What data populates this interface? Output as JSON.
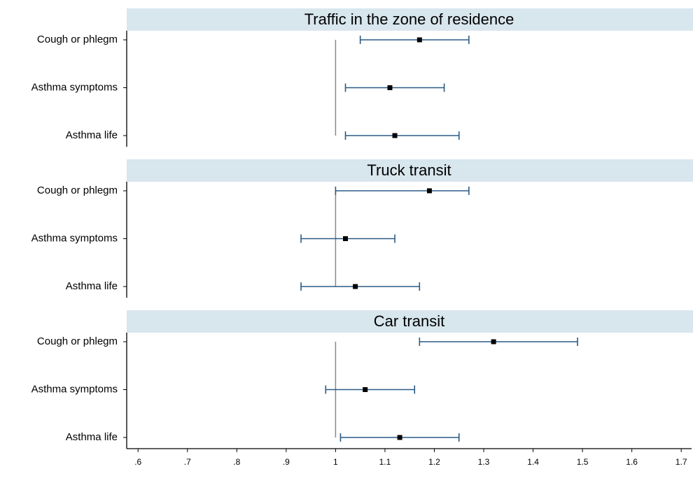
{
  "chart_data": {
    "type": "forest",
    "xlim": [
      0.577,
      1.721
    ],
    "xticks": [
      {
        "value": 0.6,
        "label": ".6"
      },
      {
        "value": 0.7,
        "label": ".7"
      },
      {
        "value": 0.8,
        "label": ".8"
      },
      {
        "value": 0.9,
        "label": ".9"
      },
      1,
      1.1,
      1.2,
      1.3,
      1.4,
      1.5,
      1.6,
      1.7
    ],
    "reference": 1,
    "point_color": "#000000",
    "ci_color": "#2a5a86",
    "panels": [
      {
        "title": "Traffic in the zone of residence",
        "categories": [
          "Cough or phlegm",
          "Asthma symptoms",
          "Asthma life"
        ],
        "values": [
          1.17,
          1.11,
          1.12
        ],
        "lower": [
          1.05,
          1.02,
          1.02
        ],
        "upper": [
          1.27,
          1.22,
          1.25
        ]
      },
      {
        "title": "Truck transit",
        "categories": [
          "Cough or phlegm",
          "Asthma symptoms",
          "Asthma life"
        ],
        "values": [
          1.19,
          1.02,
          1.04
        ],
        "lower": [
          1.0,
          0.93,
          0.93
        ],
        "upper": [
          1.27,
          1.12,
          1.17
        ]
      },
      {
        "title": "Car transit",
        "categories": [
          "Cough or phlegm",
          "Asthma symptoms",
          "Asthma life"
        ],
        "values": [
          1.32,
          1.06,
          1.13
        ],
        "lower": [
          1.17,
          0.98,
          1.01
        ],
        "upper": [
          1.49,
          1.16,
          1.25
        ]
      }
    ]
  }
}
